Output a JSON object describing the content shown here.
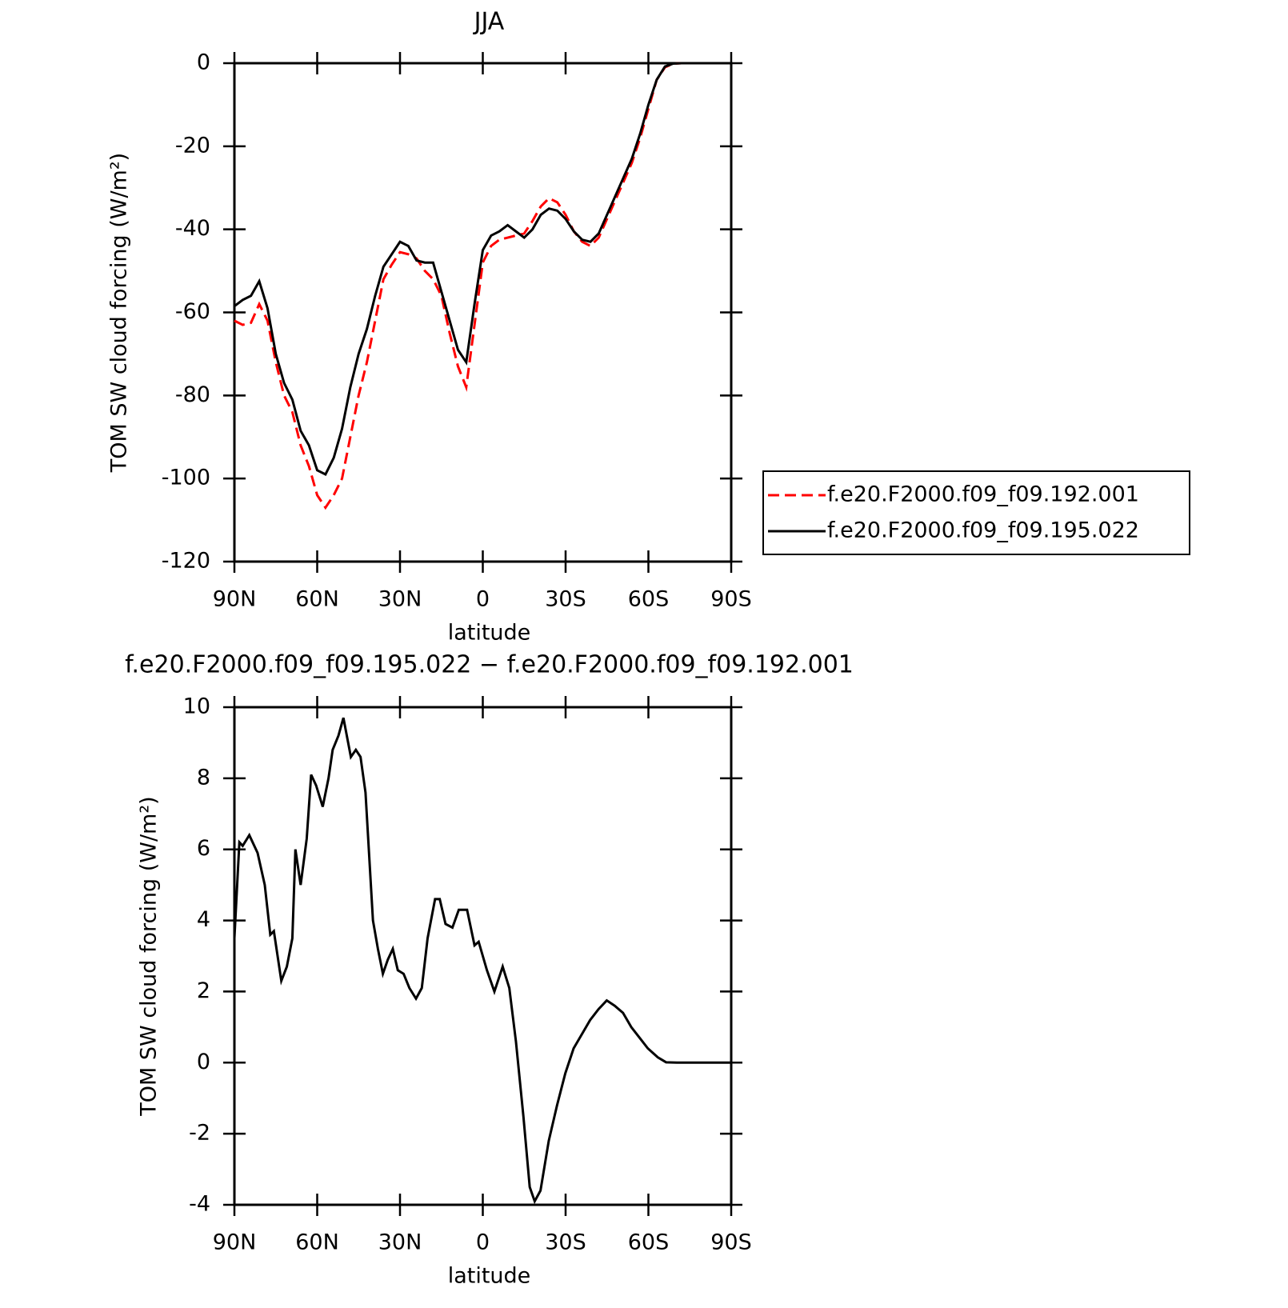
{
  "chart_data": [
    {
      "type": "line",
      "title": "JJA",
      "xlabel": "latitude",
      "ylabel": "TOM SW cloud forcing (W/m²)",
      "xlim": [
        90,
        -90
      ],
      "ylim": [
        -120,
        0
      ],
      "xticks": [
        {
          "value": 90,
          "label": "90N"
        },
        {
          "value": 60,
          "label": "60N"
        },
        {
          "value": 30,
          "label": "30N"
        },
        0,
        {
          "value": -30,
          "label": "30S"
        },
        {
          "value": -60,
          "label": "60S"
        },
        {
          "value": -90,
          "label": "90S"
        }
      ],
      "yticks": [
        -120,
        -100,
        -80,
        -60,
        -40,
        -20,
        0
      ],
      "legend": "right",
      "x": [
        90,
        87,
        84,
        81,
        78,
        75,
        72,
        69,
        66,
        63,
        60,
        57,
        54,
        51,
        48,
        45,
        42,
        39,
        36,
        33,
        30,
        27,
        24,
        21,
        18,
        15,
        12,
        9,
        6,
        3,
        0,
        -3,
        -6,
        -9,
        -12,
        -15,
        -18,
        -21,
        -24,
        -27,
        -30,
        -33,
        -36,
        -39,
        -42,
        -45,
        -48,
        -51,
        -54,
        -57,
        -60,
        -63,
        -66,
        -69,
        -72,
        -75,
        -78,
        -81,
        -84,
        -87,
        -90
      ],
      "series": [
        {
          "name": "f.e20.F2000.f09_f09.192.001",
          "color": "#ff0000",
          "line_style": "dashed",
          "values": [
            -62,
            -63,
            -62.5,
            -58,
            -62,
            -72,
            -80,
            -84,
            -92,
            -97,
            -104,
            -107,
            -104,
            -100,
            -90,
            -80,
            -72,
            -62,
            -52,
            -48.5,
            -45.5,
            -46,
            -47,
            -50,
            -52,
            -56,
            -65,
            -73,
            -78,
            -63,
            -48,
            -44,
            -42.5,
            -42,
            -41.5,
            -41,
            -38,
            -34.5,
            -32.5,
            -33.5,
            -36.5,
            -40.5,
            -43,
            -44,
            -42,
            -37.5,
            -33,
            -28.5,
            -24,
            -18,
            -11,
            -4,
            -1,
            -0.1,
            0,
            0,
            0,
            0,
            0,
            0,
            0
          ]
        },
        {
          "name": "f.e20.F2000.f09_f09.195.022",
          "color": "#000000",
          "line_style": "solid",
          "values": [
            -58.5,
            -57,
            -56,
            -52.5,
            -59,
            -70,
            -77,
            -81,
            -88.5,
            -92,
            -98,
            -99,
            -95,
            -88,
            -78,
            -70,
            -64,
            -56,
            -49,
            -46,
            -43,
            -44,
            -47.5,
            -48,
            -48,
            -55,
            -62,
            -69,
            -72,
            -58,
            -45,
            -41.5,
            -40.5,
            -39,
            -40.5,
            -42,
            -40,
            -36.5,
            -35,
            -35.5,
            -37.5,
            -40.5,
            -42.5,
            -43,
            -41,
            -36.5,
            -32,
            -27.5,
            -23,
            -17,
            -10,
            -4,
            -0.8,
            -0.1,
            0,
            0,
            0,
            0,
            0,
            0,
            0
          ]
        }
      ]
    },
    {
      "type": "line",
      "title": "f.e20.F2000.f09_f09.195.022 − f.e20.F2000.f09_f09.192.001",
      "xlabel": "latitude",
      "ylabel": "TOM SW cloud forcing (W/m²)",
      "xlim": [
        90,
        -90
      ],
      "ylim": [
        -4,
        10
      ],
      "xticks": [
        {
          "value": 90,
          "label": "90N"
        },
        {
          "value": 60,
          "label": "60N"
        },
        {
          "value": 30,
          "label": "30N"
        },
        0,
        {
          "value": -30,
          "label": "30S"
        },
        {
          "value": -60,
          "label": "60S"
        },
        {
          "value": -90,
          "label": "90S"
        }
      ],
      "yticks": [
        -4,
        -2,
        0,
        2,
        4,
        6,
        8,
        10
      ],
      "x": [
        90,
        88.2,
        87,
        84.6,
        81.6,
        79,
        77,
        75.7,
        73,
        71,
        69,
        67.9,
        66,
        63.8,
        62.2,
        60.4,
        58,
        55.9,
        54.4,
        52.3,
        50.5,
        47.8,
        46,
        44.3,
        42.5,
        39.8,
        38,
        36.2,
        34.4,
        32.6,
        30.8,
        28.7,
        26.6,
        24.2,
        22.1,
        20,
        17.3,
        15.6,
        13.5,
        11,
        8.7,
        5.7,
        3,
        1.5,
        -1.5,
        -4.2,
        -7.2,
        -9.6,
        -12,
        -14.7,
        -17,
        -18.8,
        -20.9,
        -23.9,
        -26.9,
        -29.9,
        -32.9,
        -35.9,
        -38.9,
        -41.9,
        -44.9,
        -47.8,
        -50.8,
        -53.8,
        -56.8,
        -59.8,
        -63.4,
        -66.4,
        -70.3,
        -90
      ],
      "series": [
        {
          "name": null,
          "color": "#000000",
          "line_style": "solid",
          "values": [
            3.5,
            6.2,
            6.1,
            6.4,
            5.9,
            5,
            3.6,
            3.7,
            2.3,
            2.7,
            3.5,
            6,
            5,
            6.3,
            8.1,
            7.8,
            7.2,
            8,
            8.8,
            9.2,
            9.7,
            8.6,
            8.8,
            8.6,
            7.6,
            4,
            3.2,
            2.5,
            2.9,
            3.2,
            2.6,
            2.5,
            2.1,
            1.8,
            2.1,
            3.5,
            4.6,
            4.6,
            3.9,
            3.8,
            4.3,
            4.3,
            3.3,
            3.4,
            2.6,
            2,
            2.7,
            2.1,
            0.6,
            -1.5,
            -3.5,
            -3.9,
            -3.6,
            -2.2,
            -1.2,
            -0.3,
            0.4,
            0.8,
            1.2,
            1.5,
            1.75,
            1.6,
            1.4,
            1,
            0.7,
            0.4,
            0.15,
            0.01,
            0,
            0
          ]
        }
      ]
    }
  ]
}
